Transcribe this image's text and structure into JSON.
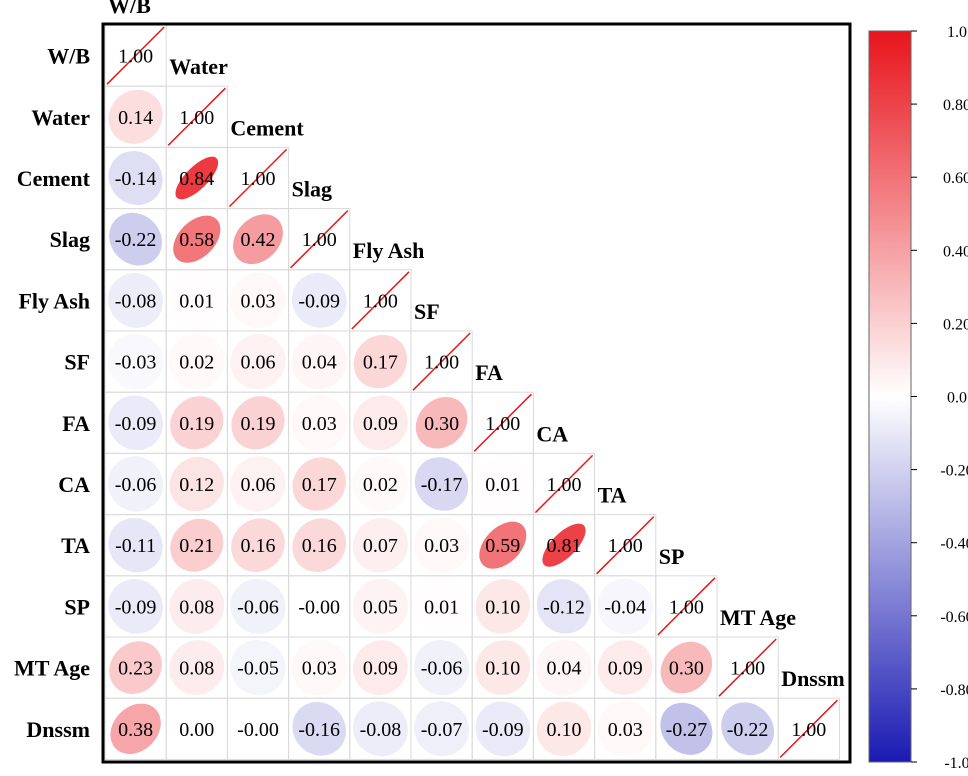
{
  "chart_data": {
    "type": "heatmap",
    "title": "",
    "variables": [
      "W/B",
      "Water",
      "Cement",
      "Slag",
      "Fly Ash",
      "SF",
      "FA",
      "CA",
      "TA",
      "SP",
      "MT Age",
      "Dnssm"
    ],
    "matrix_lower": [
      [
        1.0
      ],
      [
        0.14,
        1.0
      ],
      [
        -0.14,
        0.84,
        1.0
      ],
      [
        -0.22,
        0.58,
        0.42,
        1.0
      ],
      [
        -0.08,
        0.01,
        0.03,
        -0.09,
        1.0
      ],
      [
        -0.03,
        0.02,
        0.06,
        0.04,
        0.17,
        1.0
      ],
      [
        -0.09,
        0.19,
        0.19,
        0.03,
        0.09,
        0.3,
        1.0
      ],
      [
        -0.06,
        0.12,
        0.06,
        0.17,
        0.02,
        -0.17,
        0.01,
        1.0
      ],
      [
        -0.11,
        0.21,
        0.16,
        0.16,
        0.07,
        0.03,
        0.59,
        0.81,
        1.0
      ],
      [
        -0.09,
        0.08,
        -0.06,
        -0.0,
        0.05,
        0.01,
        0.1,
        -0.12,
        -0.04,
        1.0
      ],
      [
        0.23,
        0.08,
        -0.05,
        0.03,
        0.09,
        -0.06,
        0.1,
        0.04,
        0.09,
        0.3,
        1.0
      ],
      [
        0.38,
        0.0,
        -0.0,
        -0.16,
        -0.08,
        -0.07,
        -0.09,
        0.1,
        0.03,
        -0.27,
        -0.22,
        1.0
      ]
    ],
    "matrix_labels": [
      [
        "1.00"
      ],
      [
        "0.14",
        "1.00"
      ],
      [
        "-0.14",
        "0.84",
        "1.00"
      ],
      [
        "-0.22",
        "0.58",
        "0.42",
        "1.00"
      ],
      [
        "-0.08",
        "0.01",
        "0.03",
        "-0.09",
        "1.00"
      ],
      [
        "-0.03",
        "0.02",
        "0.06",
        "0.04",
        "0.17",
        "1.00"
      ],
      [
        "-0.09",
        "0.19",
        "0.19",
        "0.03",
        "0.09",
        "0.30",
        "1.00"
      ],
      [
        "-0.06",
        "0.12",
        "0.06",
        "0.17",
        "0.02",
        "-0.17",
        "0.01",
        "1.00"
      ],
      [
        "-0.11",
        "0.21",
        "0.16",
        "0.16",
        "0.07",
        "0.03",
        "0.59",
        "0.81",
        "1.00"
      ],
      [
        "-0.09",
        "0.08",
        "-0.06",
        "-0.00",
        "0.05",
        "0.01",
        "0.10",
        "-0.12",
        "-0.04",
        "1.00"
      ],
      [
        "0.23",
        "0.08",
        "-0.05",
        "0.03",
        "0.09",
        "-0.06",
        "0.10",
        "0.04",
        "0.09",
        "0.30",
        "1.00"
      ],
      [
        "0.38",
        "0.00",
        "-0.00",
        "-0.16",
        "-0.08",
        "-0.07",
        "-0.09",
        "0.10",
        "0.03",
        "-0.27",
        "-0.22",
        "1.00"
      ]
    ],
    "colorbar": {
      "range": [
        -1.0,
        1.0
      ],
      "ticks": [
        "1.0",
        "0.80",
        "0.60",
        "0.40",
        "0.20",
        "0.0",
        "-0.20",
        "-0.40",
        "-0.60",
        "-0.80",
        "-1.0"
      ],
      "colors": {
        "positive": "#e8141c",
        "neutral": "#ffffff",
        "negative": "#1a1ab3"
      }
    },
    "glyph": "ellipse",
    "diagonal_marker": "red diagonal line",
    "grid": true
  }
}
